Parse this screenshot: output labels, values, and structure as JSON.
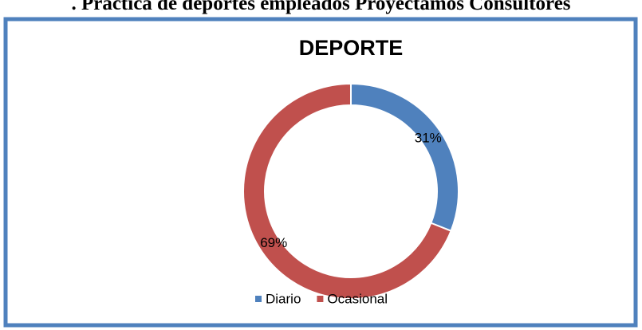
{
  "heading": ". Práctica de deportes empleados Proyectamos Consultores",
  "chart_data": {
    "type": "donut",
    "title": "DEPORTE",
    "categories": [
      "Diario",
      "Ocasional"
    ],
    "values": [
      31,
      69
    ],
    "value_labels": [
      "31%",
      "69%"
    ],
    "colors": [
      "#4f81bd",
      "#c0504d"
    ],
    "legend": "bottom"
  }
}
